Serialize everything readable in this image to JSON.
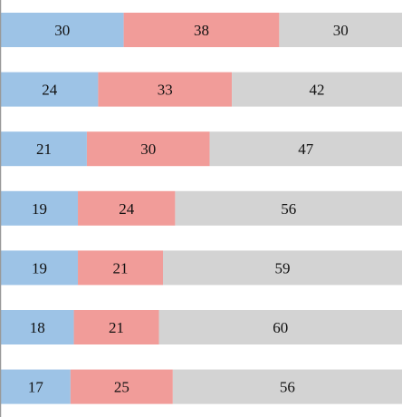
{
  "chart_data": {
    "type": "bar",
    "orientation": "horizontal",
    "stacked": true,
    "categories": [
      "",
      "",
      "",
      "",
      "",
      "",
      ""
    ],
    "series": [
      {
        "values": [
          30,
          24,
          21,
          19,
          19,
          18,
          17
        ],
        "color": "#9dc3e6"
      },
      {
        "values": [
          38,
          33,
          30,
          24,
          21,
          21,
          25
        ],
        "color": "#f19c99"
      },
      {
        "values": [
          30,
          42,
          47,
          56,
          59,
          60,
          56
        ],
        "color": "#d3d3d3"
      }
    ],
    "data_labels": true,
    "axis_line_color": "#999999",
    "grid": false,
    "legend": "none"
  }
}
